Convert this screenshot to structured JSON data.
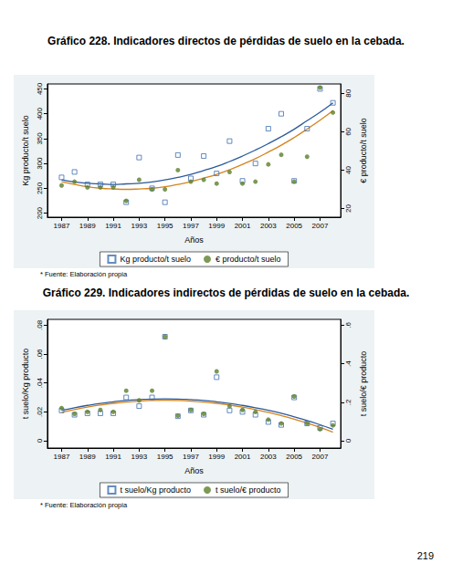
{
  "page_number": "219",
  "chart_data": [
    {
      "type": "scatter",
      "title": "Gráfico 228. Indicadores directos de pérdidas de suelo en la cebada.",
      "x_label": "Años",
      "y_label": "Kg producto/t suelo",
      "y2_label": "€ producto/t suelo",
      "annotations": [
        "* Fuente: Elaboración propia"
      ],
      "x": [
        1987,
        1988,
        1989,
        1990,
        1991,
        1992,
        1993,
        1994,
        1995,
        1996,
        1997,
        1998,
        1999,
        2000,
        2001,
        2002,
        2003,
        2004,
        2005,
        2006,
        2007,
        2008
      ],
      "xlim": [
        1985.9,
        2008.6
      ],
      "xticks": [
        1987,
        1989,
        1991,
        1993,
        1995,
        1997,
        1999,
        2001,
        2003,
        2005,
        2007
      ],
      "ylim": [
        192,
        460
      ],
      "yticks": [
        200,
        250,
        300,
        350,
        400,
        450
      ],
      "y2lim": [
        15.5,
        84.9
      ],
      "y2ticks": [
        20,
        40,
        60,
        80
      ],
      "grid": false,
      "legend": "bottom",
      "series": [
        {
          "name": "Kg producto/t suelo",
          "color": "#3e6fb0",
          "marker": "hollow_square",
          "axis": "y",
          "values": [
            272,
            283,
            258,
            258,
            258,
            222,
            312,
            250,
            222,
            317,
            270,
            315,
            280,
            345,
            265,
            300,
            370,
            400,
            265,
            370,
            450,
            422
          ],
          "fit": {
            "type": "line",
            "color": "#2a5a9a",
            "values": [
              267,
              263,
              260,
              259,
              258,
              259,
              260,
              263,
              267,
              272,
              278,
              286,
              294,
              304,
              315,
              327,
              340,
              354,
              369,
              386,
              403,
              422
            ]
          }
        },
        {
          "name": "€ producto/t suelo",
          "color": "#5d7f2a",
          "marker": "circle",
          "axis": "y2",
          "values": [
            32,
            34,
            31,
            31,
            31,
            24,
            35,
            30,
            30,
            40,
            34,
            35,
            33,
            39,
            33,
            34,
            43,
            48,
            34,
            47,
            83,
            70
          ],
          "fit": {
            "type": "line",
            "color": "#d4831e",
            "values": [
              34,
              32.6,
              31.4,
              30.6,
              30.2,
              30,
              30.2,
              30.6,
              31.4,
              32.6,
              34,
              35.8,
              37.8,
              40.2,
              43,
              46,
              49.4,
              53,
              57,
              61.4,
              66,
              71
            ]
          }
        }
      ]
    },
    {
      "type": "scatter",
      "title": "Gráfico 229. Indicadores indirectos de pérdidas de suelo en la cebada.",
      "x_label": "Años",
      "y_label": "t suelo/Kg producto",
      "y2_label": "t suelo/€ producto",
      "annotations": [
        "* Fuente: Elaboración propia"
      ],
      "x": [
        1987,
        1988,
        1989,
        1990,
        1991,
        1992,
        1993,
        1994,
        1995,
        1996,
        1997,
        1998,
        1999,
        2000,
        2001,
        2002,
        2003,
        2004,
        2005,
        2006,
        2007,
        2008
      ],
      "xlim": [
        1985.9,
        2008.6
      ],
      "xticks": [
        1987,
        1989,
        1991,
        1993,
        1995,
        1997,
        1999,
        2001,
        2003,
        2005,
        2007
      ],
      "ylim": [
        -0.005,
        0.084
      ],
      "yticks": [
        0,
        {
          "value": 0.02,
          "label": ".02"
        },
        {
          "value": 0.04,
          "label": ".04"
        },
        {
          "value": 0.06,
          "label": ".06"
        },
        {
          "value": 0.08,
          "label": ".08"
        }
      ],
      "y2lim": [
        -0.0375,
        0.63
      ],
      "y2ticks": [
        0,
        {
          "value": 0.2,
          "label": ".2"
        },
        {
          "value": 0.4,
          "label": ".4"
        },
        {
          "value": 0.6,
          "label": ".6"
        }
      ],
      "grid": false,
      "legend": "bottom",
      "series": [
        {
          "name": "t suelo/Kg producto",
          "color": "#3e6fb0",
          "marker": "hollow_square",
          "axis": "y",
          "values": [
            0.021,
            0.018,
            0.019,
            0.019,
            0.019,
            0.03,
            0.024,
            0.03,
            0.072,
            0.017,
            0.021,
            0.018,
            0.044,
            0.021,
            0.02,
            0.018,
            0.013,
            0.011,
            0.03,
            0.012,
            0.009,
            0.012
          ],
          "fit": {
            "type": "line",
            "color": "#2a5a9a",
            "values": [
              0.0211,
              0.0229,
              0.0245,
              0.0259,
              0.027,
              0.0279,
              0.0285,
              0.0289,
              0.029,
              0.0289,
              0.0285,
              0.0279,
              0.027,
              0.0259,
              0.0245,
              0.0229,
              0.0211,
              0.019,
              0.0166,
              0.014,
              0.0111,
              0.008
            ]
          }
        },
        {
          "name": "t suelo/€ producto",
          "color": "#5d7f2a",
          "marker": "circle",
          "axis": "y2",
          "values": [
            0.17,
            0.14,
            0.15,
            0.16,
            0.15,
            0.26,
            0.21,
            0.26,
            0.54,
            0.13,
            0.16,
            0.14,
            0.36,
            0.18,
            0.16,
            0.15,
            0.11,
            0.09,
            0.23,
            0.09,
            0.06,
            0.08
          ],
          "fit": {
            "type": "line",
            "color": "#d4831e",
            "values": [
              0.1475,
              0.1622,
              0.1749,
              0.1856,
              0.1944,
              0.2012,
              0.2061,
              0.209,
              0.21,
              0.209,
              0.2061,
              0.2012,
              0.1944,
              0.1856,
              0.1749,
              0.1622,
              0.1475,
              0.1309,
              0.1124,
              0.0919,
              0.0694,
              0.045
            ]
          }
        }
      ]
    }
  ]
}
